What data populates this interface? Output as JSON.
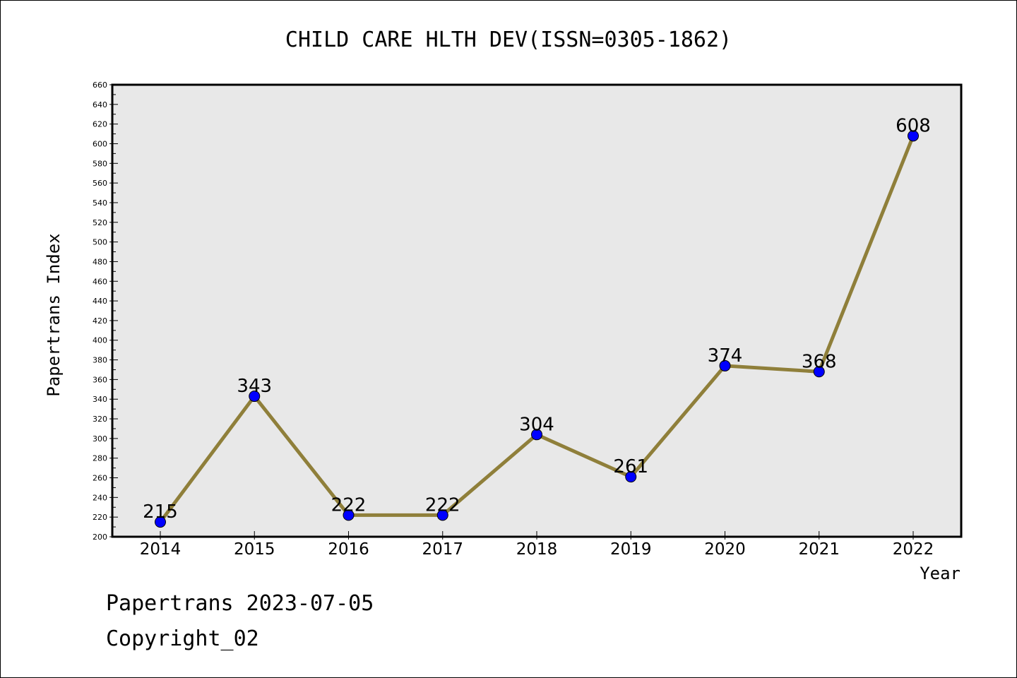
{
  "chart_data": {
    "type": "line",
    "title": "CHILD CARE HLTH DEV(ISSN=0305-1862)",
    "xlabel": "Year",
    "ylabel": "Papertrans Index",
    "categories": [
      "2014",
      "2015",
      "2016",
      "2017",
      "2018",
      "2019",
      "2020",
      "2021",
      "2022"
    ],
    "series": [
      {
        "values": [
          215,
          343,
          222,
          222,
          304,
          261,
          374,
          368,
          608
        ]
      }
    ],
    "ylim": [
      200,
      660
    ],
    "ytick_step": 20,
    "grid": false,
    "line_color": "#8F7F3A",
    "marker_color": "#0000FF",
    "plot_background": "#E8E8E8"
  },
  "footer": {
    "line1": "Papertrans 2023-07-05",
    "line2": "Copyright_02"
  }
}
